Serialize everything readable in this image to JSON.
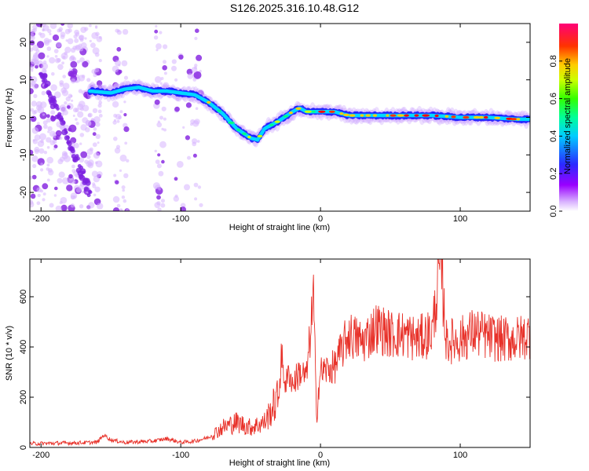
{
  "title": "S126.2025.316.10.48.G12",
  "colors": {
    "snr_line": "#e8322a",
    "spectrum_ridge": "#00c8ff",
    "scatter": "#9a44ff"
  },
  "chart_data": [
    {
      "type": "heatmap",
      "title": "S126.2025.316.10.48.G12",
      "xlabel": "Height of straight line (km)",
      "ylabel": "Frequency (Hz)",
      "xlim": [
        -208,
        150
      ],
      "ylim": [
        -25,
        25
      ],
      "x_ticks": [
        -200,
        -100,
        0,
        100
      ],
      "y_ticks": [
        -20,
        -10,
        0,
        10,
        20
      ],
      "ridge": {
        "x": [
          -165,
          -150,
          -140,
          -130,
          -120,
          -110,
          -100,
          -90,
          -80,
          -70,
          -60,
          -50,
          -45,
          -40,
          -30,
          -20,
          -15,
          -10,
          0,
          10,
          20,
          40,
          60,
          80,
          100,
          120,
          140,
          150
        ],
        "y": [
          7,
          6.5,
          7.5,
          8,
          7,
          7,
          6.5,
          6,
          4,
          1,
          -3,
          -5.5,
          -6,
          -3,
          -1,
          1.5,
          2.5,
          1.5,
          1.5,
          1.5,
          0.5,
          0.5,
          0.5,
          0.5,
          0,
          0,
          -0.5,
          -0.5
        ]
      },
      "colorbar": {
        "label": "Normalized spectral amplitude",
        "range": [
          0.0,
          1.0
        ],
        "ticks": [
          0.0,
          0.2,
          0.4,
          0.6,
          0.8
        ]
      }
    },
    {
      "type": "line",
      "xlabel": "Height of straight line (km)",
      "ylabel": "SNR (10 * v/v)",
      "xlim": [
        -208,
        150
      ],
      "ylim": [
        0,
        750
      ],
      "x_ticks": [
        -200,
        -100,
        0,
        100
      ],
      "y_ticks": [
        0,
        200,
        400,
        600
      ],
      "series": [
        {
          "name": "SNR",
          "x": [
            -208,
            -160,
            -155,
            -150,
            -140,
            -120,
            -110,
            -100,
            -90,
            -80,
            -70,
            -60,
            -50,
            -40,
            -35,
            -30,
            -28,
            -25,
            -22,
            -20,
            -15,
            -10,
            -5,
            -3,
            0,
            10,
            20,
            30,
            40,
            50,
            60,
            70,
            80,
            86,
            90,
            100,
            110,
            120,
            130,
            140,
            150
          ],
          "values": [
            15,
            20,
            50,
            30,
            20,
            25,
            35,
            20,
            25,
            40,
            80,
            100,
            80,
            100,
            150,
            200,
            360,
            250,
            300,
            250,
            300,
            280,
            600,
            150,
            300,
            320,
            450,
            420,
            480,
            450,
            450,
            430,
            460,
            750,
            420,
            430,
            460,
            440,
            430,
            430,
            450
          ]
        }
      ]
    }
  ]
}
